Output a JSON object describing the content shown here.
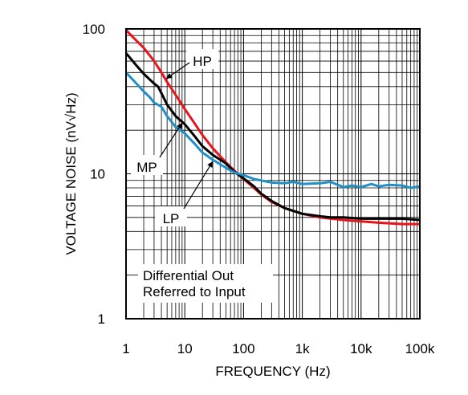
{
  "chart_data": {
    "type": "line",
    "xscale": "log",
    "yscale": "log",
    "xlim": [
      1,
      100000
    ],
    "ylim": [
      1,
      100
    ],
    "xlabel": "FREQUENCY (Hz)",
    "ylabel": "VOLTAGE NOISE (nV√Hz)",
    "x_ticks": [
      {
        "value": 1,
        "label": "1"
      },
      {
        "value": 10,
        "label": "10"
      },
      {
        "value": 100,
        "label": "100"
      },
      {
        "value": 1000,
        "label": "1k"
      },
      {
        "value": 10000,
        "label": "10k"
      },
      {
        "value": 100000,
        "label": "100k"
      }
    ],
    "y_ticks": [
      {
        "value": 1,
        "label": "1"
      },
      {
        "value": 10,
        "label": "10"
      },
      {
        "value": 100,
        "label": "100"
      }
    ],
    "grid": true,
    "annotation": [
      "Differential Out",
      "Referred to Input"
    ],
    "series": [
      {
        "name": "HP",
        "color": "#e8141c",
        "points": [
          [
            1,
            98
          ],
          [
            1.5,
            83
          ],
          [
            2,
            74
          ],
          [
            2.5,
            66
          ],
          [
            3,
            60
          ],
          [
            4,
            50
          ],
          [
            5,
            43
          ],
          [
            7,
            35
          ],
          [
            10,
            28
          ],
          [
            15,
            22
          ],
          [
            20,
            18.5
          ],
          [
            30,
            15
          ],
          [
            50,
            12
          ],
          [
            70,
            10.5
          ],
          [
            100,
            9.2
          ],
          [
            150,
            8.0
          ],
          [
            200,
            7.2
          ],
          [
            300,
            6.4
          ],
          [
            500,
            5.8
          ],
          [
            1000,
            5.3
          ],
          [
            2000,
            5.0
          ],
          [
            5000,
            4.8
          ],
          [
            10000,
            4.7
          ],
          [
            20000,
            4.6
          ],
          [
            50000,
            4.5
          ],
          [
            100000,
            4.5
          ]
        ]
      },
      {
        "name": "MP",
        "color": "#000000",
        "points": [
          [
            1,
            68
          ],
          [
            1.5,
            56
          ],
          [
            2,
            49
          ],
          [
            2.5,
            45
          ],
          [
            3,
            42
          ],
          [
            3.5,
            40
          ],
          [
            4,
            36
          ],
          [
            5,
            30
          ],
          [
            7,
            25
          ],
          [
            10,
            22
          ],
          [
            15,
            18
          ],
          [
            20,
            15.5
          ],
          [
            30,
            13.5
          ],
          [
            50,
            11.8
          ],
          [
            70,
            10.3
          ],
          [
            100,
            9.3
          ],
          [
            150,
            8.2
          ],
          [
            200,
            7.3
          ],
          [
            300,
            6.5
          ],
          [
            500,
            5.8
          ],
          [
            1000,
            5.3
          ],
          [
            2000,
            5.1
          ],
          [
            3000,
            5.0
          ],
          [
            5000,
            5.0
          ],
          [
            10000,
            4.9
          ],
          [
            20000,
            4.9
          ],
          [
            50000,
            4.9
          ],
          [
            100000,
            4.8
          ]
        ]
      },
      {
        "name": "LP",
        "color": "#1f8fc7",
        "points": [
          [
            1,
            50
          ],
          [
            1.5,
            42
          ],
          [
            2,
            37
          ],
          [
            2.5,
            34
          ],
          [
            3,
            31
          ],
          [
            4,
            29
          ],
          [
            5,
            25
          ],
          [
            7,
            21
          ],
          [
            10,
            19
          ],
          [
            15,
            16
          ],
          [
            20,
            14
          ],
          [
            30,
            12.5
          ],
          [
            50,
            11
          ],
          [
            70,
            10.2
          ],
          [
            100,
            9.8
          ],
          [
            150,
            9.2
          ],
          [
            200,
            9.0
          ],
          [
            300,
            8.7
          ],
          [
            500,
            8.6
          ],
          [
            700,
            8.8
          ],
          [
            1000,
            8.5
          ],
          [
            2000,
            8.6
          ],
          [
            3000,
            8.8
          ],
          [
            4000,
            8.4
          ],
          [
            5000,
            8.1
          ],
          [
            7000,
            8.3
          ],
          [
            10000,
            8.1
          ],
          [
            15000,
            8.5
          ],
          [
            20000,
            8.2
          ],
          [
            30000,
            8.4
          ],
          [
            50000,
            8.3
          ],
          [
            70000,
            8.0
          ],
          [
            100000,
            8.2
          ]
        ]
      }
    ]
  }
}
